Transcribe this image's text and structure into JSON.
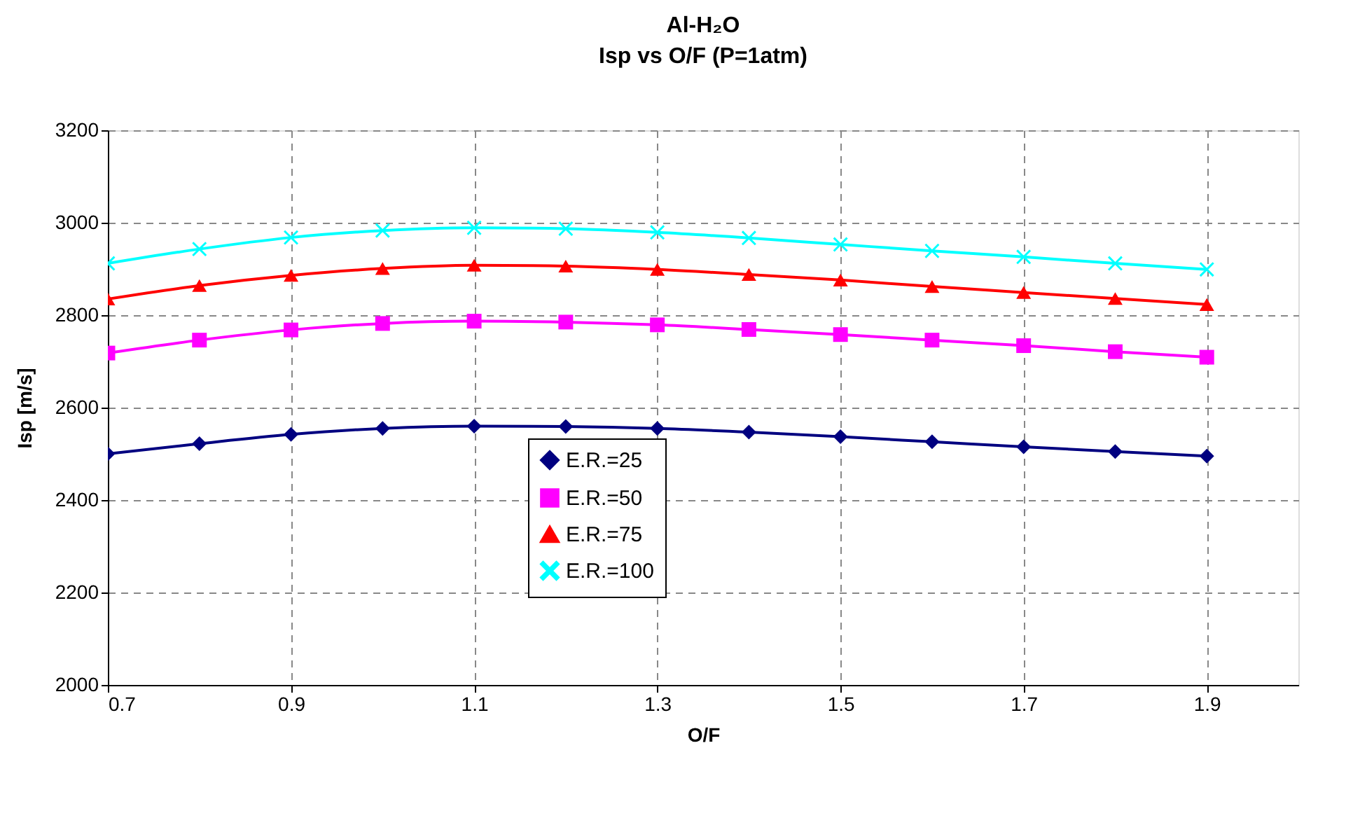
{
  "chart_data": {
    "type": "line",
    "title": "Al-H₂O",
    "subtitle": "Isp vs  O/F (P=1atm)",
    "xlabel": "O/F",
    "ylabel": "Isp [m/s]",
    "x": [
      0.7,
      0.8,
      0.9,
      1.0,
      1.1,
      1.2,
      1.3,
      1.4,
      1.5,
      1.6,
      1.7,
      1.8,
      1.9
    ],
    "series": [
      {
        "name": "E.R.=25",
        "color": "#000080",
        "marker": "diamond",
        "values": [
          2500,
          2522,
          2542,
          2555,
          2560,
          2559,
          2555,
          2547,
          2537,
          2526,
          2515,
          2505,
          2495
        ]
      },
      {
        "name": "E.R.=50",
        "color": "#ff00ff",
        "marker": "square",
        "values": [
          2718,
          2746,
          2768,
          2782,
          2787,
          2785,
          2779,
          2769,
          2758,
          2746,
          2734,
          2721,
          2709
        ]
      },
      {
        "name": "E.R.=75",
        "color": "#ff0000",
        "marker": "triangle",
        "values": [
          2835,
          2864,
          2886,
          2901,
          2908,
          2906,
          2899,
          2888,
          2876,
          2862,
          2849,
          2836,
          2823
        ]
      },
      {
        "name": "E.R.=100",
        "color": "#00ffff",
        "marker": "cross",
        "values": [
          2912,
          2943,
          2968,
          2983,
          2989,
          2987,
          2979,
          2967,
          2953,
          2939,
          2926,
          2912,
          2899
        ]
      }
    ],
    "xlim": [
      0.7,
      2.0
    ],
    "xticks": [
      0.7,
      0.9,
      1.1,
      1.3,
      1.5,
      1.7,
      1.9
    ],
    "ylim": [
      2000,
      3200
    ],
    "yticks": [
      2000,
      2200,
      2400,
      2600,
      2800,
      3000,
      3200
    ],
    "grid": true,
    "legend": "bottom",
    "line_style": "solid"
  }
}
